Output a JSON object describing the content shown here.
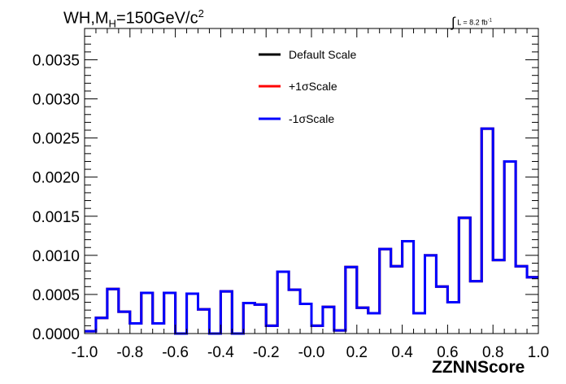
{
  "title": {
    "pre": "WH,M",
    "sub": "H",
    "post": "=150GeV/c",
    "sup": "2"
  },
  "lumi": {
    "integral": "∫",
    "text": "L = 8.2 fb",
    "sup": "-1"
  },
  "chart_data": {
    "type": "line",
    "style": "step-histogram",
    "xlabel": "ZZNNScore",
    "ylabel": "",
    "xlim": [
      -1.0,
      1.0
    ],
    "ylim": [
      0,
      0.0039
    ],
    "x_ticks": [
      "-1.0",
      "-0.8",
      "-0.6",
      "-0.4",
      "-0.2",
      "-0.0",
      "0.2",
      "0.4",
      "0.6",
      "0.8",
      "1.0"
    ],
    "y_ticks": [
      "0.0000",
      "0.0005",
      "0.0010",
      "0.0015",
      "0.0020",
      "0.0025",
      "0.0030",
      "0.0035"
    ],
    "bin_edges": [
      -1.0,
      -0.95,
      -0.9,
      -0.85,
      -0.8,
      -0.75,
      -0.7,
      -0.65,
      -0.6,
      -0.55,
      -0.5,
      -0.45,
      -0.4,
      -0.35,
      -0.3,
      -0.25,
      -0.2,
      -0.15,
      -0.1,
      -0.05,
      0.0,
      0.05,
      0.1,
      0.15,
      0.2,
      0.25,
      0.3,
      0.35,
      0.4,
      0.45,
      0.5,
      0.55,
      0.6,
      0.65,
      0.7,
      0.75,
      0.8,
      0.85,
      0.9,
      0.95,
      1.0
    ],
    "series": [
      {
        "name": "Default Scale",
        "color": "#000000",
        "values": [
          3e-05,
          0.0002,
          0.00057,
          0.00028,
          0.00013,
          0.00052,
          0.00013,
          0.00052,
          0.0,
          0.00051,
          0.00031,
          0.0,
          0.00054,
          0.0,
          0.00039,
          0.00037,
          0.0001,
          0.00079,
          0.00056,
          0.00038,
          0.0001,
          0.00034,
          4e-05,
          0.00085,
          0.00033,
          0.00026,
          0.00108,
          0.00086,
          0.00118,
          0.00026,
          0.001,
          0.0006,
          0.0004,
          0.00148,
          0.00067,
          0.00262,
          0.00094,
          0.0022,
          0.00086,
          0.00072
        ]
      },
      {
        "name": "+1σScale",
        "color": "#ff0000",
        "values": [
          3e-05,
          0.0002,
          0.00057,
          0.00028,
          0.00013,
          0.00052,
          0.00013,
          0.00052,
          0.0,
          0.00051,
          0.00031,
          0.0,
          0.00054,
          0.0,
          0.00039,
          0.00037,
          0.0001,
          0.00079,
          0.00056,
          0.00038,
          0.0001,
          0.00034,
          4e-05,
          0.00085,
          0.00033,
          0.00026,
          0.00108,
          0.00086,
          0.00118,
          0.00026,
          0.001,
          0.0006,
          0.0004,
          0.00148,
          0.00067,
          0.00262,
          0.00094,
          0.0022,
          0.00086,
          0.00072
        ]
      },
      {
        "name": "-1σScale",
        "color": "#0000ff",
        "values": [
          3e-05,
          0.0002,
          0.00057,
          0.00028,
          0.00013,
          0.00052,
          0.00013,
          0.00052,
          0.0,
          0.00051,
          0.00031,
          0.0,
          0.00054,
          0.0,
          0.00039,
          0.00037,
          0.0001,
          0.00079,
          0.00056,
          0.00038,
          0.0001,
          0.00034,
          4e-05,
          0.00085,
          0.00033,
          0.00026,
          0.00108,
          0.00086,
          0.00118,
          0.00026,
          0.001,
          0.0006,
          0.0004,
          0.00148,
          0.00067,
          0.00262,
          0.00094,
          0.0022,
          0.00086,
          0.00072
        ]
      }
    ],
    "legend": "top-center",
    "grid": false
  }
}
